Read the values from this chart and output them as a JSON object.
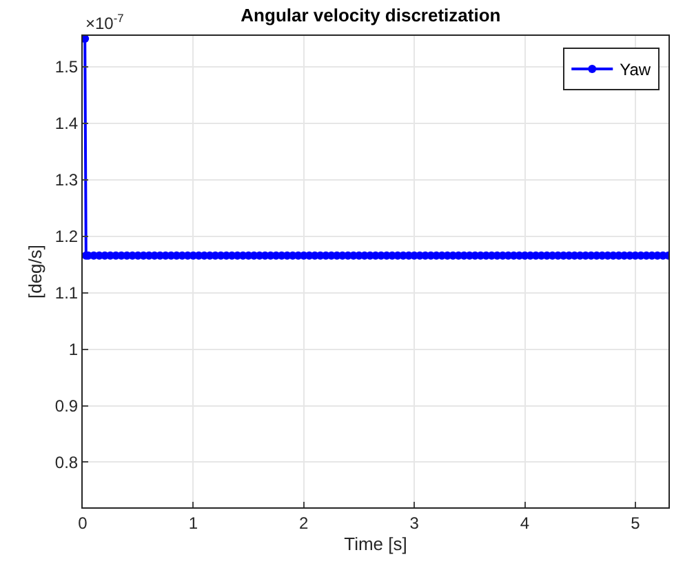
{
  "chart_data": {
    "type": "line",
    "title": "Angular velocity discretization",
    "xlabel": "Time [s]",
    "ylabel": "[deg/s]",
    "annotations": [
      "×10$^{-7}$"
    ],
    "xlim": [
      0,
      5.3
    ],
    "xticks": [
      0,
      1,
      2,
      3,
      4,
      5
    ],
    "ylim": [
      0.72,
      1.555
    ],
    "yticks": [
      0.8,
      0.9,
      1,
      1.1,
      1.2,
      1.3,
      1.4,
      1.5
    ],
    "grid": true,
    "legend": "top right",
    "marker": "circle",
    "line_style": "solid",
    "series": [
      {
        "name": "Yaw",
        "color": "#0000ff",
        "x": [
          0.02,
          0.03,
          0.05,
          0.1,
          0.15,
          0.2,
          0.25,
          0.3,
          0.35,
          0.4,
          0.45,
          0.5,
          0.55,
          0.6,
          0.65,
          0.7,
          0.75,
          0.8,
          0.85,
          0.9,
          0.95,
          1.0,
          1.05,
          1.1,
          1.15,
          1.2,
          1.25,
          1.3,
          1.35,
          1.4,
          1.45,
          1.5,
          1.55,
          1.6,
          1.65,
          1.7,
          1.75,
          1.8,
          1.85,
          1.9,
          1.95,
          2.0,
          2.05,
          2.1,
          2.15,
          2.2,
          2.25,
          2.3,
          2.35,
          2.4,
          2.45,
          2.5,
          2.55,
          2.6,
          2.65,
          2.7,
          2.75,
          2.8,
          2.85,
          2.9,
          2.95,
          3.0,
          3.05,
          3.1,
          3.15,
          3.2,
          3.25,
          3.3,
          3.35,
          3.4,
          3.45,
          3.5,
          3.55,
          3.6,
          3.65,
          3.7,
          3.75,
          3.8,
          3.85,
          3.9,
          3.95,
          4.0,
          4.05,
          4.1,
          4.15,
          4.2,
          4.25,
          4.3,
          4.35,
          4.4,
          4.45,
          4.5,
          4.55,
          4.6,
          4.65,
          4.7,
          4.75,
          4.8,
          4.85,
          4.9,
          4.95,
          5.0,
          5.05,
          5.1,
          5.15,
          5.2,
          5.25,
          5.3
        ],
        "values": [
          1.55,
          1.166,
          1.166,
          1.166,
          1.166,
          1.166,
          1.166,
          1.166,
          1.166,
          1.166,
          1.166,
          1.166,
          1.166,
          1.166,
          1.166,
          1.166,
          1.166,
          1.166,
          1.166,
          1.166,
          1.166,
          1.166,
          1.166,
          1.166,
          1.166,
          1.166,
          1.166,
          1.166,
          1.166,
          1.166,
          1.166,
          1.166,
          1.166,
          1.166,
          1.166,
          1.166,
          1.166,
          1.166,
          1.166,
          1.166,
          1.166,
          1.166,
          1.166,
          1.166,
          1.166,
          1.166,
          1.166,
          1.166,
          1.166,
          1.166,
          1.166,
          1.166,
          1.166,
          1.166,
          1.166,
          1.166,
          1.166,
          1.166,
          1.166,
          1.166,
          1.166,
          1.166,
          1.166,
          1.166,
          1.166,
          1.166,
          1.166,
          1.166,
          1.166,
          1.166,
          1.166,
          1.166,
          1.166,
          1.166,
          1.166,
          1.166,
          1.166,
          1.166,
          1.166,
          1.166,
          1.166,
          1.166,
          1.166,
          1.166,
          1.166,
          1.166,
          1.166,
          1.166,
          1.166,
          1.166,
          1.166,
          1.166,
          1.166,
          1.166,
          1.166,
          1.166,
          1.166,
          1.166,
          1.166,
          1.166,
          1.166,
          1.166,
          1.166,
          1.166,
          1.166,
          1.166,
          1.166,
          1.166
        ]
      }
    ]
  }
}
